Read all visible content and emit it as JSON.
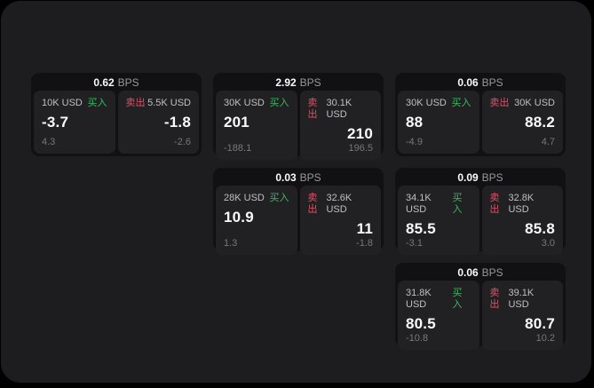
{
  "colors": {
    "background": "#000000",
    "panel": "#1d1d1f",
    "card": "#111113",
    "pane": "#212124",
    "buy_green": "#3cb95f",
    "sell_red": "#e24f66"
  },
  "labels": {
    "bps": "BPS",
    "buy": "买入",
    "sell": "卖出"
  },
  "cards": [
    {
      "bps": "0.62",
      "buy": {
        "amount": "10K USD",
        "value": "-3.7",
        "sub": "4.3"
      },
      "sell": {
        "amount": "5.5K USD",
        "value": "-1.8",
        "sub": "-2.6"
      }
    },
    {
      "bps": "2.92",
      "buy": {
        "amount": "30K USD",
        "value": "201",
        "sub": "-188.1"
      },
      "sell": {
        "amount": "30.1K USD",
        "value": "210",
        "sub": "196.5"
      }
    },
    {
      "bps": "0.06",
      "buy": {
        "amount": "30K USD",
        "value": "88",
        "sub": "-4.9"
      },
      "sell": {
        "amount": "30K USD",
        "value": "88.2",
        "sub": "4.7"
      }
    },
    {
      "bps": "0.03",
      "buy": {
        "amount": "28K USD",
        "value": "10.9",
        "sub": "1.3"
      },
      "sell": {
        "amount": "32.6K USD",
        "value": "11",
        "sub": "-1.8"
      }
    },
    {
      "bps": "0.09",
      "buy": {
        "amount": "34.1K USD",
        "value": "85.5",
        "sub": "-3.1"
      },
      "sell": {
        "amount": "32.8K USD",
        "value": "85.8",
        "sub": "3.0"
      }
    },
    {
      "bps": "0.06",
      "buy": {
        "amount": "31.8K USD",
        "value": "80.5",
        "sub": "-10.8"
      },
      "sell": {
        "amount": "39.1K USD",
        "value": "80.7",
        "sub": "10.2"
      }
    }
  ]
}
